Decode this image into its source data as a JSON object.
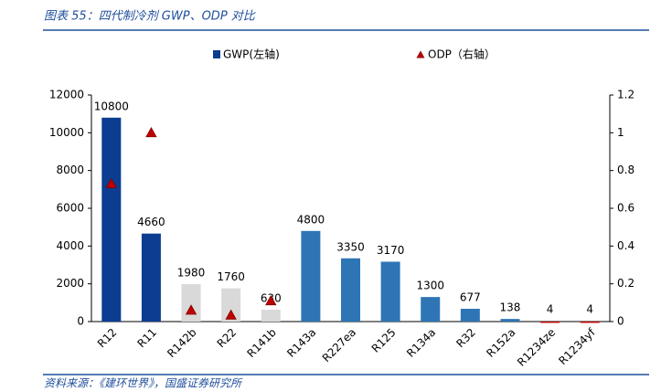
{
  "chart_data": {
    "type": "bar",
    "title": "图表 55：四代制冷剂 GWP、ODP 对比",
    "source": "资料来源：《建环世界》，国盛证券研究所",
    "categories": [
      "R12",
      "R11",
      "R142b",
      "R22",
      "R141b",
      "R143a",
      "R227ea",
      "R125",
      "R134a",
      "R32",
      "R152a",
      "R1234ze",
      "R1234yf"
    ],
    "series": [
      {
        "name": "GWP(左轴)",
        "color": "#0b3d91",
        "bar_colors": [
          "#0b3d91",
          "#0b3d91",
          "#d9d9d9",
          "#d9d9d9",
          "#d9d9d9",
          "#2e75b6",
          "#2e75b6",
          "#2e75b6",
          "#2e75b6",
          "#2e75b6",
          "#2e75b6",
          "#c00000",
          "#c00000"
        ],
        "values": [
          10800,
          4660,
          1980,
          1760,
          630,
          4800,
          3350,
          3170,
          1300,
          677,
          138,
          4,
          4
        ]
      },
      {
        "name": "ODP（右轴）",
        "color": "#c00000",
        "axis": "y2",
        "values": [
          0.73,
          1.0,
          0.06,
          0.034,
          0.11,
          null,
          null,
          null,
          null,
          null,
          null,
          null,
          null
        ]
      }
    ],
    "ylim": [
      0,
      12000
    ],
    "yticks": [
      0,
      2000,
      4000,
      6000,
      8000,
      10000,
      12000
    ],
    "y2lim": [
      0,
      1.2
    ],
    "y2ticks": [
      0,
      0.2,
      0.4,
      0.6,
      0.8,
      1,
      1.2
    ],
    "grid": false
  }
}
